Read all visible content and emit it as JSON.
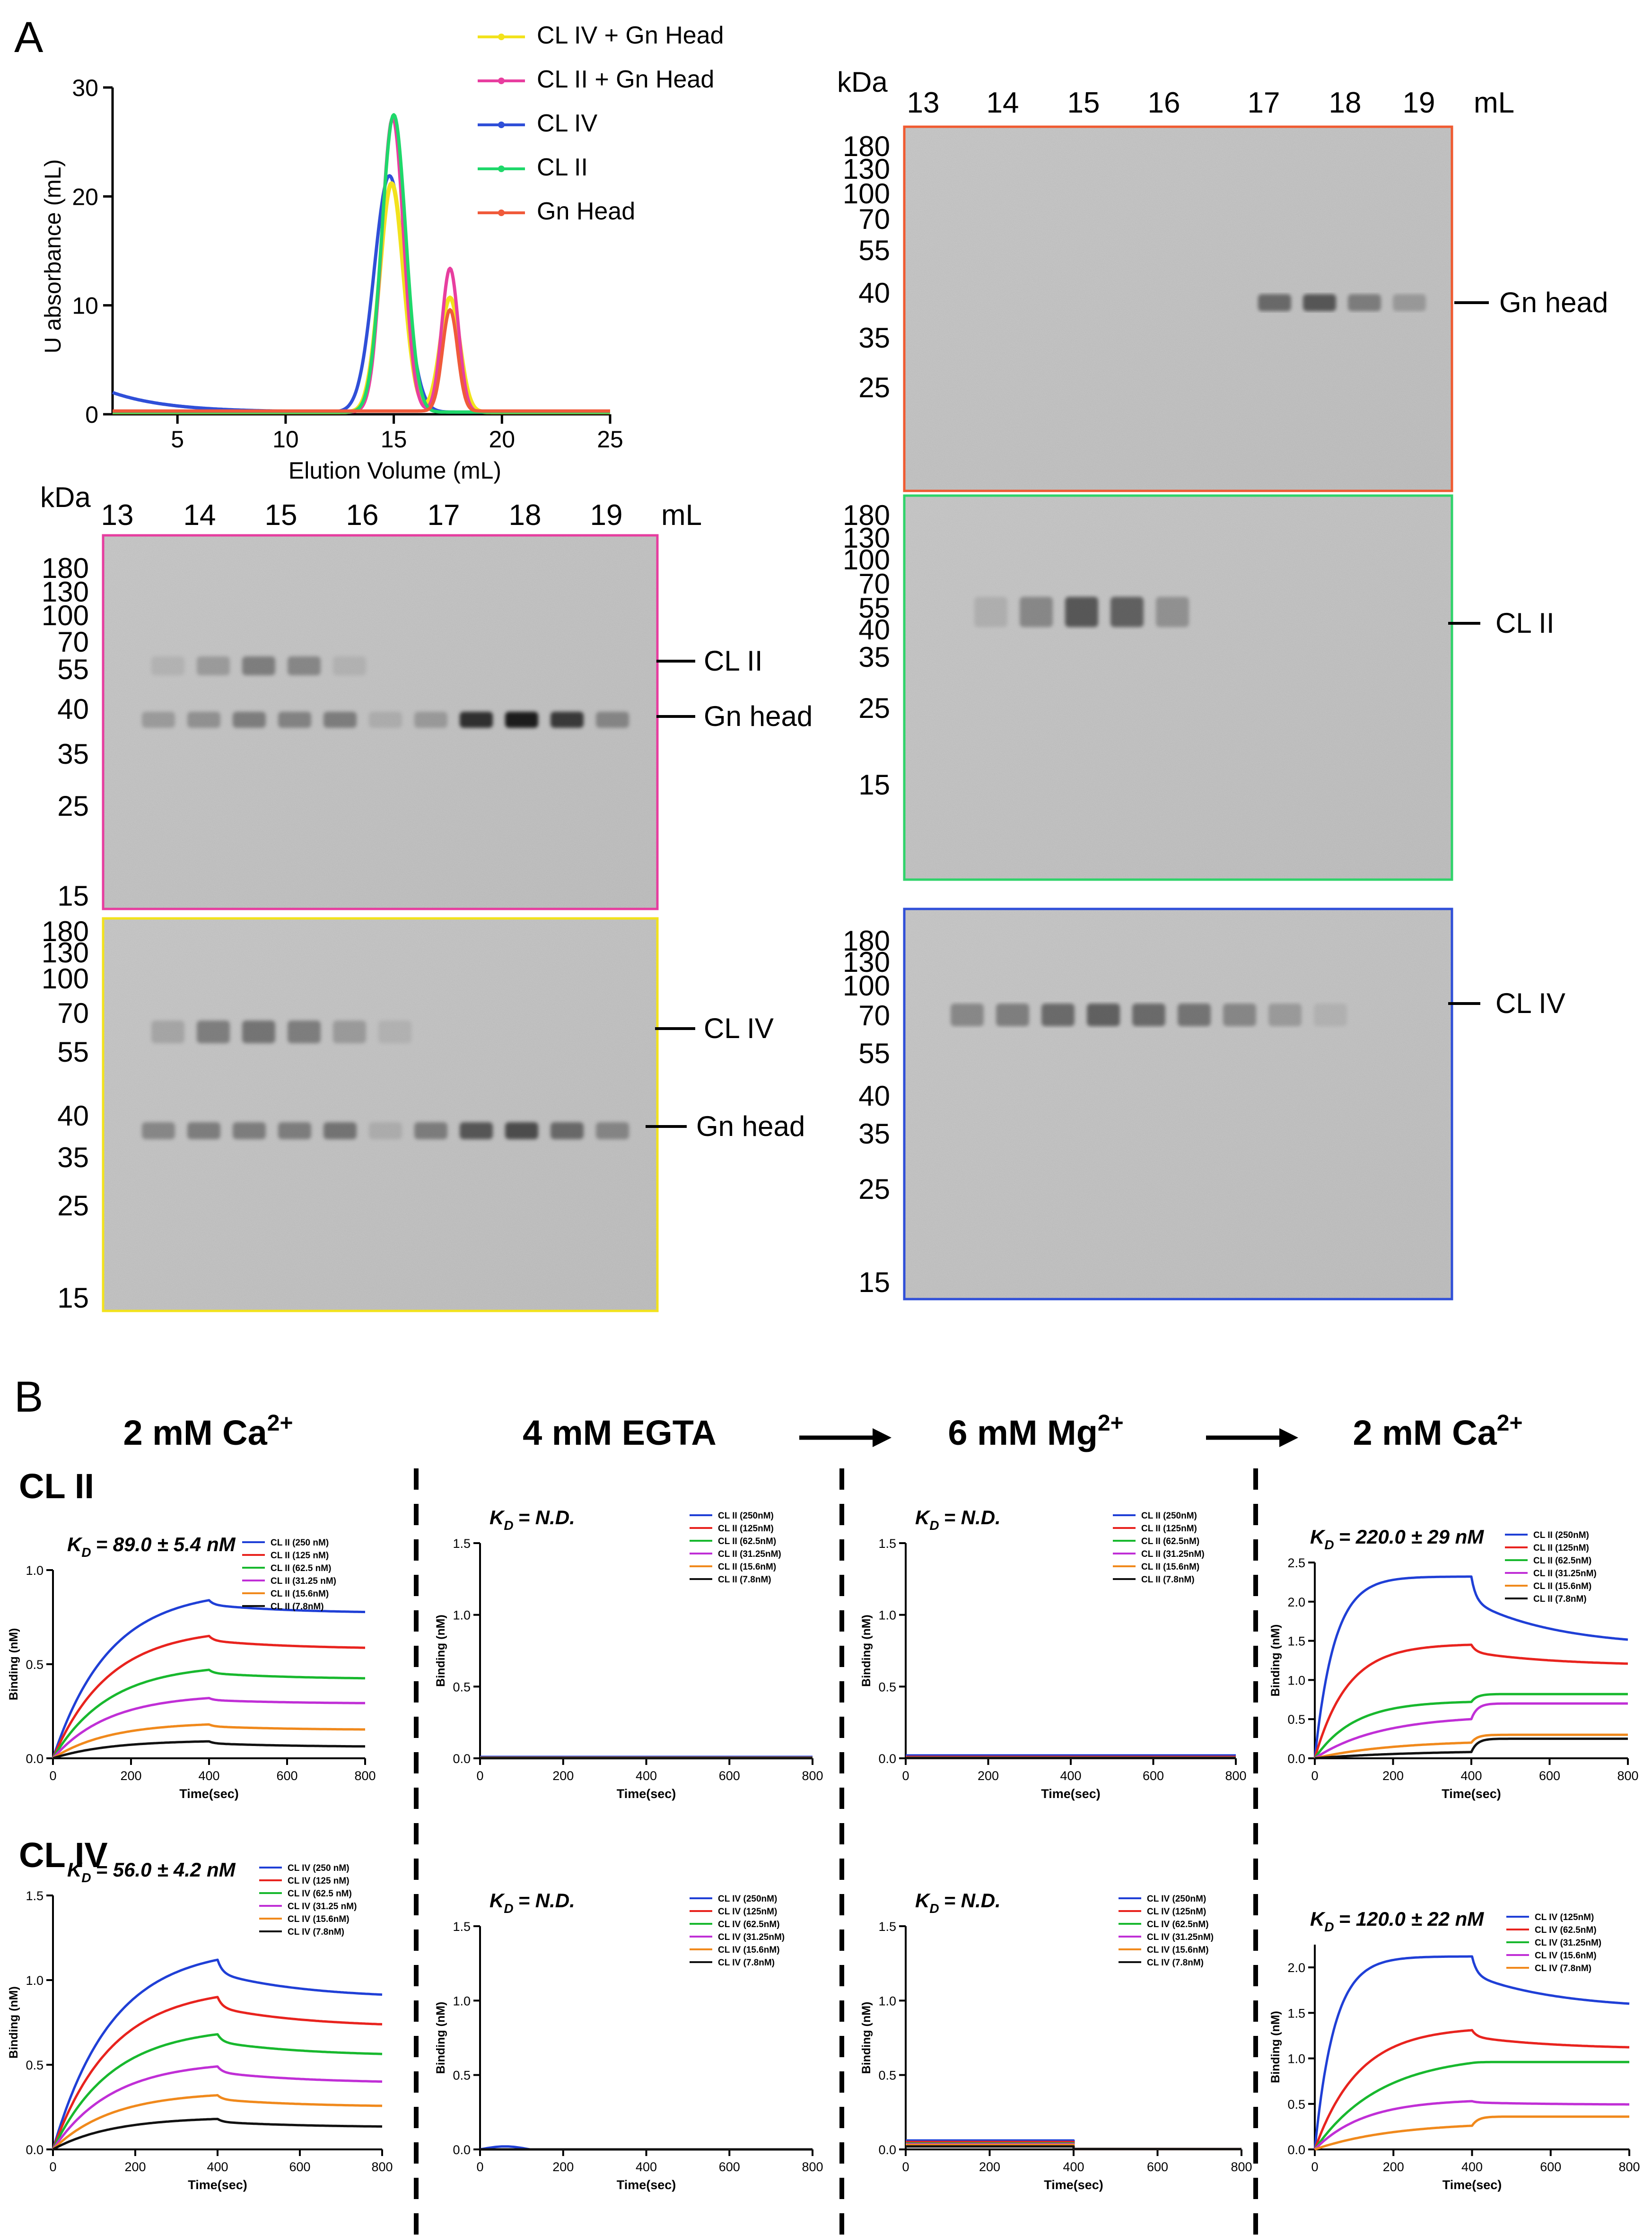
{
  "panel_labels": {
    "a": "A",
    "b": "B"
  },
  "sec": {
    "title": "",
    "xlabel": "Elution Volume (mL)",
    "ylabel": "U absorbance (mL)",
    "xticks": [
      "5",
      "10",
      "15",
      "20",
      "25"
    ],
    "yticks": [
      "0",
      "10",
      "20",
      "30"
    ],
    "legend": [
      "CL IV + Gn Head",
      "CL II + Gn Head",
      "CL IV",
      "CL II",
      "Gn Head"
    ]
  },
  "gels": {
    "kda_label": "kDa",
    "ml_label": "mL",
    "fractions": [
      "13",
      "14",
      "15",
      "16",
      "17",
      "18",
      "19"
    ],
    "markers": [
      "180",
      "130",
      "100",
      "70",
      "55",
      "40",
      "35",
      "25",
      "15"
    ],
    "gn_only": {
      "bands": [
        "Gn head"
      ]
    },
    "cl2_gn": {
      "bands": [
        "CL II",
        "Gn head"
      ]
    },
    "cl2_only": {
      "bands": [
        "CL II"
      ]
    },
    "cl4_gn": {
      "bands": [
        "CL IV",
        "Gn head"
      ]
    },
    "cl4_only": {
      "bands": [
        "CL IV"
      ]
    }
  },
  "conditions": {
    "c1": {
      "text": "2 mM Ca",
      "charge": "2+"
    },
    "c2": {
      "text": "4 mM EGTA"
    },
    "c3": {
      "text": "6 mM Mg",
      "charge": "2+"
    },
    "c4": {
      "text": "2 mM Ca",
      "charge": "2+"
    }
  },
  "rows": {
    "r1": "CL II",
    "r2": "CL IV"
  },
  "bli": {
    "kd_sub": "D",
    "xlabel": "Time(sec)",
    "ylabel": "Binding (nM)",
    "xticks": [
      "0",
      "200",
      "400",
      "600",
      "800"
    ],
    "colors": [
      "#1f3fd6",
      "#e8231e",
      "#18b82e",
      "#c02fd6",
      "#f0891c",
      "#111111"
    ],
    "p11": {
      "kd": "= 89.0 ± 5.4 nM",
      "yticks": [
        "0.0",
        "0.5",
        "1.0"
      ],
      "legend": [
        "CL II (250 nM)",
        "CL II (125 nM)",
        "CL II (62.5 nM)",
        "CL II (31.25 nM)",
        "CL II (15.6nM)",
        "CL II (7.8nM)"
      ]
    },
    "p12": {
      "kd": "= N.D.",
      "yticks": [
        "0.0",
        "0.5",
        "1.0",
        "1.5"
      ],
      "legend": [
        "CL II (250nM)",
        "CL II (125nM)",
        "CL II (62.5nM)",
        "CL II (31.25nM)",
        "CL II (15.6nM)",
        "CL II (7.8nM)"
      ]
    },
    "p13": {
      "kd": "= N.D.",
      "yticks": [
        "0.0",
        "0.5",
        "1.0",
        "1.5"
      ],
      "legend": [
        "CL II (250nM)",
        "CL II (125nM)",
        "CL II (62.5nM)",
        "CL II (31.25nM)",
        "CL II (15.6nM)",
        "CL II (7.8nM)"
      ]
    },
    "p14": {
      "kd": "= 220.0 ± 29 nM",
      "yticks": [
        "0.0",
        "0.5",
        "1.0",
        "1.5",
        "2.0",
        "2.5"
      ],
      "legend": [
        "CL II (250nM)",
        "CL II (125nM)",
        "CL II (62.5nM)",
        "CL II (31.25nM)",
        "CL II (15.6nM)",
        "CL II (7.8nM)"
      ]
    },
    "p21": {
      "kd": "= 56.0 ± 4.2 nM",
      "yticks": [
        "0.0",
        "0.5",
        "1.0",
        "1.5"
      ],
      "legend": [
        "CL IV (250 nM)",
        "CL IV (125 nM)",
        "CL IV (62.5 nM)",
        "CL IV (31.25 nM)",
        "CL IV (15.6nM)",
        "CL IV (7.8nM)"
      ]
    },
    "p22": {
      "kd": "= N.D.",
      "yticks": [
        "0.0",
        "0.5",
        "1.0",
        "1.5"
      ],
      "legend": [
        "CL IV (250nM)",
        "CL IV (125nM)",
        "CL IV (62.5nM)",
        "CL IV (31.25nM)",
        "CL IV (15.6nM)",
        "CL IV (7.8nM)"
      ]
    },
    "p23": {
      "kd": "= N.D.",
      "yticks": [
        "0.0",
        "0.5",
        "1.0",
        "1.5"
      ],
      "legend": [
        "CL IV (250nM)",
        "CL IV (125nM)",
        "CL IV (62.5nM)",
        "CL IV (31.25nM)",
        "CL IV (15.6nM)",
        "CL IV (7.8nM)"
      ]
    },
    "p24": {
      "kd": "= 120.0 ± 22 nM",
      "yticks": [
        "0.0",
        "0.5",
        "1.0",
        "1.5",
        "2.0"
      ],
      "legend": [
        "CL IV (125nM)",
        "CL IV (62.5nM)",
        "CL IV (31.25nM)",
        "CL IV (15.6nM)",
        "CL IV (7.8nM)"
      ]
    }
  },
  "chart_data": [
    {
      "type": "line",
      "title": "",
      "xlabel": "Elution Volume (mL)",
      "ylabel": "U absorbance (mL)",
      "xlim": [
        2,
        25
      ],
      "ylim": [
        0,
        30
      ],
      "series": [
        {
          "name": "CL IV + Gn Head",
          "color": "#f2e21c",
          "peaks": [
            {
              "center": 14.9,
              "height": 21,
              "width": 0.55
            },
            {
              "center": 17.6,
              "height": 10.5,
              "width": 0.45
            }
          ],
          "baseline": 0.2
        },
        {
          "name": "CL II + Gn Head",
          "color": "#e83e9f",
          "peaks": [
            {
              "center": 14.95,
              "height": 27,
              "width": 0.5
            },
            {
              "center": 17.6,
              "height": 13.2,
              "width": 0.38
            }
          ],
          "baseline": 0.2
        },
        {
          "name": "CL IV",
          "color": "#2f4fd8",
          "peaks": [
            {
              "center": 14.8,
              "height": 21.7,
              "width": 0.7
            }
          ],
          "baseline": 0.2,
          "leading": 1.8
        },
        {
          "name": "CL II",
          "color": "#1fd86a",
          "peaks": [
            {
              "center": 15.0,
              "height": 27.3,
              "width": 0.55
            }
          ],
          "baseline": 0.2
        },
        {
          "name": "Gn Head",
          "color": "#f05a3a",
          "peaks": [
            {
              "center": 17.6,
              "height": 9.3,
              "width": 0.35
            }
          ],
          "baseline": 0.3
        }
      ]
    },
    {
      "type": "line",
      "panel": "CL II, 2 mM Ca2+",
      "xlim": [
        0,
        800
      ],
      "ylim": [
        0,
        1.0
      ],
      "assoc_end": 400,
      "series": [
        {
          "name": "CL II (250 nM)",
          "plateau": 0.84,
          "k": 0.007,
          "end": 0.77
        },
        {
          "name": "CL II (125 nM)",
          "plateau": 0.65,
          "k": 0.007,
          "end": 0.58
        },
        {
          "name": "CL II (62.5 nM)",
          "plateau": 0.47,
          "k": 0.007,
          "end": 0.42
        },
        {
          "name": "CL II (31.25 nM)",
          "plateau": 0.32,
          "k": 0.007,
          "end": 0.29
        },
        {
          "name": "CL II (15.6nM)",
          "plateau": 0.18,
          "k": 0.007,
          "end": 0.15
        },
        {
          "name": "CL II (7.8nM)",
          "plateau": 0.09,
          "k": 0.007,
          "end": 0.06
        }
      ]
    },
    {
      "type": "line",
      "panel": "CL II, 4 mM EGTA",
      "xlim": [
        0,
        800
      ],
      "ylim": [
        0,
        1.5
      ],
      "series": [
        {
          "name": "CL II (250nM)",
          "value": 0.01
        },
        {
          "name": "CL II (125nM)",
          "value": 0.005
        },
        {
          "name": "CL II (62.5nM)",
          "value": 0.004
        },
        {
          "name": "CL II (31.25nM)",
          "value": 0.003
        },
        {
          "name": "CL II (15.6nM)",
          "value": 0.002
        },
        {
          "name": "CL II (7.8nM)",
          "value": 0.001
        }
      ]
    },
    {
      "type": "line",
      "panel": "CL II, 6 mM Mg2+",
      "xlim": [
        0,
        800
      ],
      "ylim": [
        0,
        1.5
      ],
      "series": [
        {
          "name": "CL II (250nM)",
          "value": 0.02
        },
        {
          "name": "CL II (125nM)",
          "value": 0.01
        },
        {
          "name": "CL II (62.5nM)",
          "value": 0.005
        },
        {
          "name": "CL II (31.25nM)",
          "value": 0.004
        },
        {
          "name": "CL II (15.6nM)",
          "value": 0.003
        },
        {
          "name": "CL II (7.8nM)",
          "value": 0.002
        }
      ]
    },
    {
      "type": "line",
      "panel": "CL II, 2 mM Ca2+ (restored)",
      "xlim": [
        0,
        800
      ],
      "ylim": [
        0,
        2.5
      ],
      "assoc_end": 400,
      "series": [
        {
          "name": "CL II (250nM)",
          "plateau": 2.32,
          "k": 0.02,
          "end": 1.42
        },
        {
          "name": "CL II (125nM)",
          "plateau": 1.45,
          "k": 0.012,
          "end": 1.18
        },
        {
          "name": "CL II (62.5nM)",
          "plateau": 0.72,
          "k": 0.01,
          "end": 0.82
        },
        {
          "name": "CL II (31.25nM)",
          "plateau": 0.5,
          "k": 0.006,
          "end": 0.7
        },
        {
          "name": "CL II (15.6nM)",
          "plateau": 0.2,
          "k": 0.005,
          "end": 0.3
        },
        {
          "name": "CL II (7.8nM)",
          "plateau": 0.08,
          "k": 0.004,
          "end": 0.25
        }
      ]
    },
    {
      "type": "line",
      "panel": "CL IV, 2 mM Ca2+",
      "xlim": [
        0,
        800
      ],
      "ylim": [
        0,
        1.5
      ],
      "assoc_end": 400,
      "series": [
        {
          "name": "CL IV (250 nM)",
          "plateau": 1.12,
          "k": 0.007,
          "end": 0.89
        },
        {
          "name": "CL IV (125 nM)",
          "plateau": 0.9,
          "k": 0.007,
          "end": 0.72
        },
        {
          "name": "CL IV (62.5 nM)",
          "plateau": 0.68,
          "k": 0.007,
          "end": 0.55
        },
        {
          "name": "CL IV (31.25 nM)",
          "plateau": 0.49,
          "k": 0.007,
          "end": 0.39
        },
        {
          "name": "CL IV (15.6nM)",
          "plateau": 0.32,
          "k": 0.007,
          "end": 0.25
        },
        {
          "name": "CL IV (7.8nM)",
          "plateau": 0.18,
          "k": 0.007,
          "end": 0.13
        }
      ]
    },
    {
      "type": "line",
      "panel": "CL IV, 4 mM EGTA",
      "xlim": [
        0,
        800
      ],
      "ylim": [
        0,
        1.5
      ],
      "series": [
        {
          "name": "CL IV (250nM)",
          "value": 0.0,
          "bump": 0.02
        },
        {
          "name": "CL IV (125nM)",
          "value": 0.0
        },
        {
          "name": "CL IV (62.5nM)",
          "value": 0.0
        },
        {
          "name": "CL IV (31.25nM)",
          "value": 0.0
        },
        {
          "name": "CL IV (15.6nM)",
          "value": 0.0
        },
        {
          "name": "CL IV (7.8nM)",
          "value": 0.0
        }
      ]
    },
    {
      "type": "line",
      "panel": "CL IV, 6 mM Mg2+",
      "xlim": [
        0,
        800
      ],
      "ylim": [
        0,
        1.5
      ],
      "assoc_end": 400,
      "series": [
        {
          "name": "CL IV (250nM)",
          "value": 0.06
        },
        {
          "name": "CL IV (125nM)",
          "value": 0.05
        },
        {
          "name": "CL IV (62.5nM)",
          "value": 0.04
        },
        {
          "name": "CL IV (31.25nM)",
          "value": 0.035
        },
        {
          "name": "CL IV (15.6nM)",
          "value": 0.03
        },
        {
          "name": "CL IV (7.8nM)",
          "value": 0.02
        }
      ]
    },
    {
      "type": "line",
      "panel": "CL IV, 2 mM Ca2+ (restored)",
      "xlim": [
        0,
        800
      ],
      "ylim": [
        0,
        2.25
      ],
      "assoc_end": 400,
      "series": [
        {
          "name": "CL IV (125nM)",
          "plateau": 2.12,
          "k": 0.02,
          "end": 1.54
        },
        {
          "name": "CL IV (62.5nM)",
          "plateau": 1.31,
          "k": 0.009,
          "end": 1.1
        },
        {
          "name": "CL IV (31.25nM)",
          "plateau": 0.95,
          "k": 0.006,
          "end": 0.96
        },
        {
          "name": "CL IV (15.6nM)",
          "plateau": 0.53,
          "k": 0.008,
          "end": 0.49
        },
        {
          "name": "CL IV (7.8nM)",
          "plateau": 0.26,
          "k": 0.005,
          "end": 0.36
        }
      ]
    }
  ]
}
